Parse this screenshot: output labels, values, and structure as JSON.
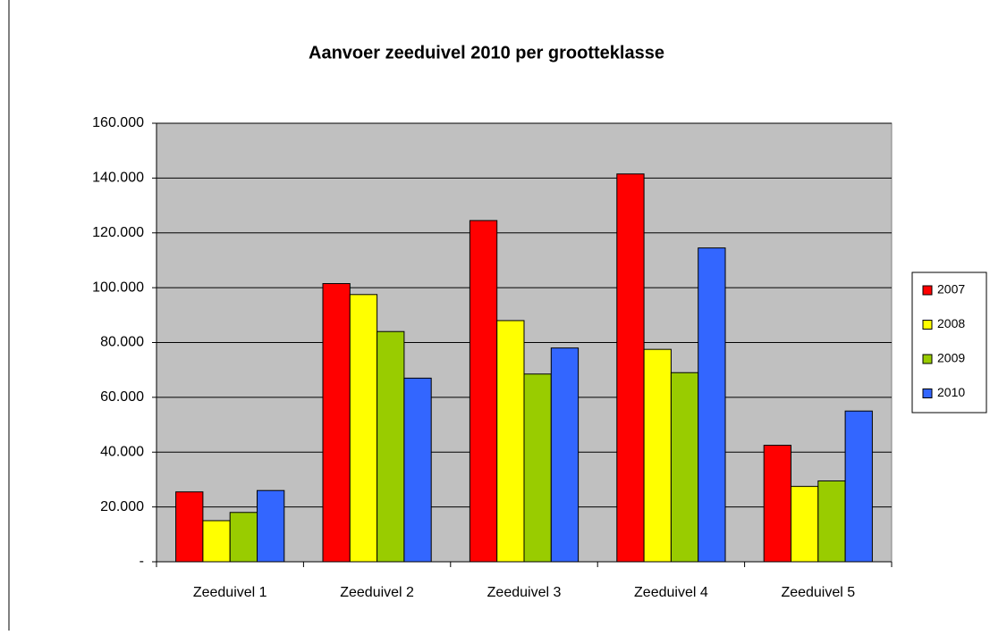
{
  "chart_data": {
    "type": "bar",
    "title": "Aanvoer zeeduivel 2010 per grootteklasse",
    "categories": [
      "Zeeduivel 1",
      "Zeeduivel 2",
      "Zeeduivel 3",
      "Zeeduivel 4",
      "Zeeduivel 5"
    ],
    "series": [
      {
        "name": "2007",
        "color": "#ff0000",
        "values": [
          25500,
          101500,
          124500,
          141500,
          42500
        ]
      },
      {
        "name": "2008",
        "color": "#ffff00",
        "values": [
          15000,
          97500,
          88000,
          77500,
          27500
        ]
      },
      {
        "name": "2009",
        "color": "#99cc00",
        "values": [
          18000,
          84000,
          68500,
          69000,
          29500
        ]
      },
      {
        "name": "2010",
        "color": "#3366ff",
        "values": [
          26000,
          67000,
          78000,
          114500,
          55000
        ]
      }
    ],
    "ylim": [
      0,
      160000
    ],
    "yticks": [
      {
        "value": 0,
        "label": "-"
      },
      {
        "value": 20000,
        "label": "20.000"
      },
      {
        "value": 40000,
        "label": "40.000"
      },
      {
        "value": 60000,
        "label": "60.000"
      },
      {
        "value": 80000,
        "label": "80.000"
      },
      {
        "value": 100000,
        "label": "100.000"
      },
      {
        "value": 120000,
        "label": "120.000"
      },
      {
        "value": 140000,
        "label": "140.000"
      },
      {
        "value": 160000,
        "label": "160.000"
      }
    ],
    "grid": true,
    "legend": "right"
  }
}
